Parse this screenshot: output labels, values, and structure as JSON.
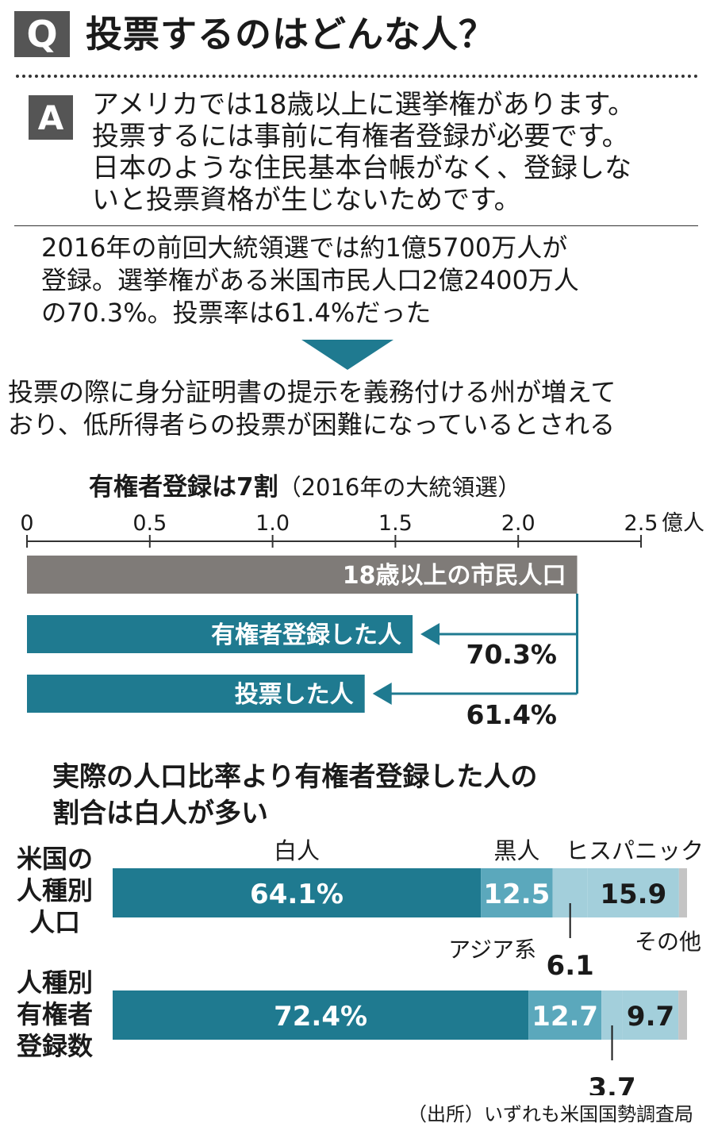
{
  "header": {
    "q_badge": "Q",
    "title": "投票するのはどんな人？"
  },
  "answer": {
    "a_badge": "A",
    "lines": [
      "アメリカでは18歳以上に選挙権があります。",
      "投票するには事前に有権者登録が必要です。",
      "日本のような住民基本台帳がなく、登録しな",
      "いと投票資格が生じないためです。"
    ]
  },
  "facts": {
    "lines": [
      "2016年の前回大統領選では約1億5700万人が",
      "登録。選挙権がある米国市民人口2億2400万人",
      "の70.3%。投票率は61.4%だった"
    ]
  },
  "note": {
    "lines": [
      "投票の際に身分証明書の提示を義務付ける州が増えて",
      "おり、低所得者らの投票が困難になっているとされる"
    ]
  },
  "chart1": {
    "title": "有権者登録は7割",
    "subtitle": "（2016年の大統領選）"
  },
  "chart2": {
    "title_lines": [
      "実際の人口比率より有権者登録した人の",
      "割合は白人が多い"
    ]
  },
  "colors": {
    "gray": "#7f7b78",
    "teal": "#1f7a90",
    "teal_mid": "#5ba8bc",
    "teal_light": "#a3cfdb",
    "other": "#c4c4c4"
  },
  "source": "（出所）いずれも米国国勢調査局",
  "chart_data": [
    {
      "type": "bar",
      "orientation": "horizontal",
      "unit": "億人",
      "xlim": [
        0,
        2.5
      ],
      "ticks": [
        "0",
        "0.5",
        "1.0",
        "1.5",
        "2.0",
        "2.5"
      ],
      "tick_values": [
        0,
        0.5,
        1.0,
        1.5,
        2.0,
        2.5
      ],
      "categories": [
        "18歳以上の市民人口",
        "有権者登録した人",
        "投票した人"
      ],
      "values": [
        2.24,
        1.57,
        1.375
      ],
      "annotations": [
        "70.3%",
        "61.4%"
      ]
    },
    {
      "type": "bar",
      "orientation": "horizontal",
      "stacked": true,
      "percent": true,
      "rows": [
        {
          "label": [
            "米国の",
            "人種別",
            "人口"
          ],
          "values": [
            64.1,
            12.5,
            6.1,
            15.9,
            1.4
          ],
          "labels": [
            "64.1%",
            "12.5",
            "6.1",
            "15.9",
            ""
          ]
        },
        {
          "label": [
            "人種別",
            "有権者",
            "登録数"
          ],
          "values": [
            72.4,
            12.7,
            3.7,
            9.7,
            1.5
          ],
          "labels": [
            "72.4%",
            "12.7",
            "3.7",
            "9.7",
            ""
          ]
        }
      ],
      "series_names": [
        "白人",
        "黒人",
        "アジア系",
        "ヒスパニック",
        "その他"
      ]
    }
  ]
}
